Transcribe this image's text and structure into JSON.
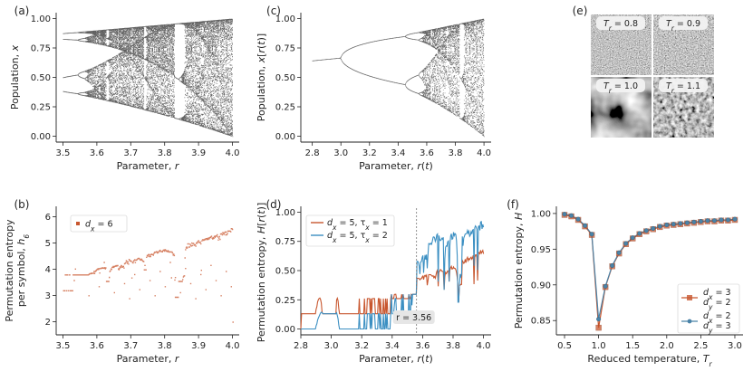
{
  "chart_data": [
    {
      "id": "a",
      "panel_label": "(a)",
      "type": "scatter",
      "description_values": {
        "r_start": 3.5,
        "r_end": 4.0
      },
      "xlabel": "Parameter, r",
      "ylabel": "Population, x",
      "xlim": [
        3.48,
        4.02
      ],
      "ylim": [
        -0.05,
        1.05
      ],
      "xticks": [
        "3.5",
        "3.6",
        "3.7",
        "3.8",
        "3.9",
        "4.0"
      ],
      "xtick_values": [
        3.5,
        3.6,
        3.7,
        3.8,
        3.9,
        4.0
      ],
      "yticks": [
        "0.00",
        "0.25",
        "0.50",
        "0.75",
        "1.00"
      ],
      "ytick_values": [
        0,
        0.25,
        0.5,
        0.75,
        1.0
      ],
      "color": "#2b2b2b"
    },
    {
      "id": "b",
      "panel_label": "(b)",
      "type": "scatter",
      "xlabel": "Parameter, r",
      "ylabel": "Permutation entropy per symbol, h",
      "ylabel_line1": "Permutation entropy",
      "ylabel_line2": "per symbol, h",
      "ylabel_sub": "6",
      "xlim": [
        3.48,
        4.02
      ],
      "ylim": [
        1.5,
        6.4
      ],
      "xticks": [
        "3.5",
        "3.6",
        "3.7",
        "3.8",
        "3.9",
        "4.0"
      ],
      "xtick_values": [
        3.5,
        3.6,
        3.7,
        3.8,
        3.9,
        4.0
      ],
      "yticks": [
        "2",
        "3",
        "4",
        "5",
        "6"
      ],
      "ytick_values": [
        2,
        3,
        4,
        5,
        6
      ],
      "legend": [
        {
          "label": "d",
          "sub": "x",
          "suffix": " = 6"
        }
      ],
      "color": "#c8562e"
    },
    {
      "id": "c",
      "panel_label": "(c)",
      "type": "scatter",
      "xlabel": "Parameter, r(t)",
      "ylabel": "Population, x[r(t)]",
      "xlim": [
        2.72,
        4.05
      ],
      "ylim": [
        -0.05,
        1.05
      ],
      "xticks": [
        "2.8",
        "3.0",
        "3.2",
        "3.4",
        "3.6",
        "3.8",
        "4.0"
      ],
      "xtick_values": [
        2.8,
        3.0,
        3.2,
        3.4,
        3.6,
        3.8,
        4.0
      ],
      "yticks": [
        "0.00",
        "0.25",
        "0.50",
        "0.75",
        "1.00"
      ],
      "ytick_values": [
        0,
        0.25,
        0.5,
        0.75,
        1.0
      ],
      "color": "#2b2b2b"
    },
    {
      "id": "d",
      "panel_label": "(d)",
      "type": "line",
      "xlabel": "Parameter, r(t)",
      "ylabel": "Permutation entropy, H[r(t)]",
      "xlim": [
        2.8,
        4.05
      ],
      "ylim": [
        -0.05,
        1.05
      ],
      "xticks": [
        "2.8",
        "3.0",
        "3.2",
        "3.4",
        "3.6",
        "3.8",
        "4.0"
      ],
      "xtick_values": [
        2.8,
        3.0,
        3.2,
        3.4,
        3.6,
        3.8,
        4.0
      ],
      "yticks": [
        "0.00",
        "0.25",
        "0.50",
        "0.75",
        "1.00"
      ],
      "ytick_values": [
        0,
        0.25,
        0.5,
        0.75,
        1.0
      ],
      "series": [
        {
          "name": "dx=5, τx=1",
          "label_d": "d",
          "sub_d": "x",
          "mid": " = 5, τ",
          "sub_t": "x",
          "tail": " = 1",
          "color": "#c8562e"
        },
        {
          "name": "dx=5, τx=2",
          "label_d": "d",
          "sub_d": "x",
          "mid": " = 5, τ",
          "sub_t": "x",
          "tail": " = 2",
          "color": "#3b8fc2"
        }
      ],
      "vline": {
        "x": 3.56,
        "label": "r = 3.56"
      }
    },
    {
      "id": "e",
      "panel_label": "(e)",
      "type": "heatmap",
      "tiles": [
        {
          "label": "T",
          "sub": "r",
          "suffix": " = 0.8"
        },
        {
          "label": "T",
          "sub": "r",
          "suffix": " = 0.9"
        },
        {
          "label": "T",
          "sub": "r",
          "suffix": " = 1.0"
        },
        {
          "label": "T",
          "sub": "r",
          "suffix": " = 1.1"
        }
      ]
    },
    {
      "id": "f",
      "panel_label": "(f)",
      "type": "line",
      "xlabel": "Reduced temperature, T",
      "xlabel_sub": "r",
      "ylabel": "Permutation entropy, H",
      "xlim": [
        0.38,
        3.12
      ],
      "ylim": [
        0.83,
        1.01
      ],
      "xticks": [
        "0.5",
        "1.0",
        "1.5",
        "2.0",
        "2.5",
        "3.0"
      ],
      "xtick_values": [
        0.5,
        1.0,
        1.5,
        2.0,
        2.5,
        3.0
      ],
      "yticks": [
        "0.85",
        "0.90",
        "0.95",
        "1.00"
      ],
      "ytick_values": [
        0.85,
        0.9,
        0.95,
        1.0
      ],
      "x": [
        0.5,
        0.6,
        0.7,
        0.8,
        0.9,
        1.0,
        1.1,
        1.2,
        1.3,
        1.4,
        1.5,
        1.6,
        1.7,
        1.8,
        1.9,
        2.0,
        2.1,
        2.2,
        2.3,
        2.4,
        2.5,
        2.6,
        2.7,
        2.8,
        2.9,
        3.0
      ],
      "series": [
        {
          "name": "dx=3, dy=2",
          "l1": "d",
          "s1": "x",
          "t1": " = 3",
          "l2": "d",
          "s2": "y",
          "t2": " = 2",
          "marker": "square",
          "color": "#c8562e",
          "values": [
            0.998,
            0.996,
            0.991,
            0.982,
            0.97,
            0.84,
            0.897,
            0.926,
            0.944,
            0.957,
            0.965,
            0.971,
            0.975,
            0.978,
            0.981,
            0.983,
            0.984,
            0.985,
            0.986,
            0.987,
            0.988,
            0.989,
            0.989,
            0.99,
            0.99,
            0.991
          ]
        },
        {
          "name": "dx=2, dy=3",
          "l1": "d",
          "s1": "x",
          "t1": " = 2",
          "l2": "d",
          "s2": "y",
          "t2": " = 3",
          "marker": "circle",
          "color": "#4a83a8",
          "values": [
            0.999,
            0.997,
            0.992,
            0.983,
            0.971,
            0.852,
            0.898,
            0.927,
            0.945,
            0.958,
            0.966,
            0.972,
            0.976,
            0.979,
            0.982,
            0.984,
            0.985,
            0.986,
            0.987,
            0.988,
            0.989,
            0.99,
            0.99,
            0.991,
            0.991,
            0.992
          ]
        }
      ]
    }
  ]
}
